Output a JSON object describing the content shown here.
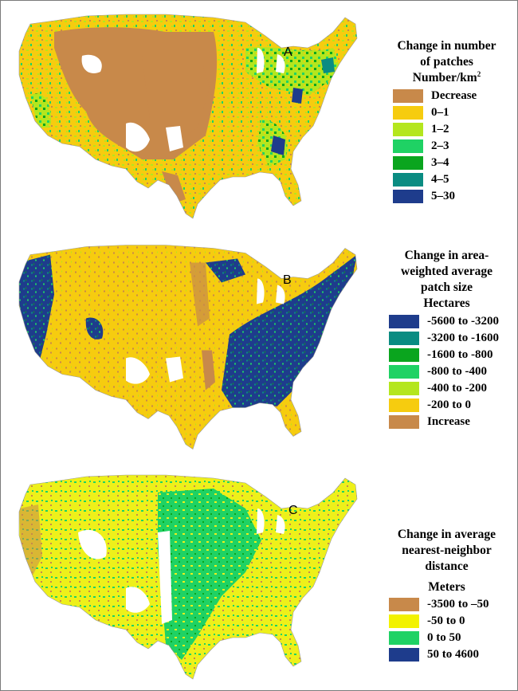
{
  "panels": [
    {
      "letter": "A",
      "title_lines": [
        "Change in number",
        "of patches"
      ],
      "unit": "Number/km",
      "unit_sup": "2",
      "dominant_color": "#c8894a",
      "classes": [
        {
          "label": "Decrease",
          "color": "#c8894a"
        },
        {
          "label": "0–1",
          "color": "#f6cc0f"
        },
        {
          "label": "1–2",
          "color": "#b4e61e"
        },
        {
          "label": "2–3",
          "color": "#1fd264"
        },
        {
          "label": "3–4",
          "color": "#0aa51e"
        },
        {
          "label": "4–5",
          "color": "#0a8c82"
        },
        {
          "label": "5–30",
          "color": "#1e3c8c"
        }
      ]
    },
    {
      "letter": "B",
      "title_lines": [
        "Change in area-",
        "weighted average",
        "patch size"
      ],
      "unit": "Hectares",
      "unit_sup": "",
      "dominant_color": "#f6cc0f",
      "classes": [
        {
          "label": "-5600 to -3200",
          "color": "#1e3c8c"
        },
        {
          "label": "-3200 to -1600",
          "color": "#0a8c82"
        },
        {
          "label": "-1600 to -800",
          "color": "#0aa51e"
        },
        {
          "label": "-800 to -400",
          "color": "#1fd264"
        },
        {
          "label": "-400 to -200",
          "color": "#b4e61e"
        },
        {
          "label": "-200 to 0",
          "color": "#f6cc0f"
        },
        {
          "label": "Increase",
          "color": "#c8894a"
        }
      ]
    },
    {
      "letter": "C",
      "title_lines": [
        "Change in average",
        "nearest-neighbor",
        "distance"
      ],
      "unit": "Meters",
      "unit_sup": "",
      "dominant_color": "#eef01a",
      "classes": [
        {
          "label": "-3500 to –50",
          "color": "#c8894a"
        },
        {
          "label": "-50 to 0",
          "color": "#f2f200"
        },
        {
          "label": "0 to 50",
          "color": "#1fd264"
        },
        {
          "label": "50 to 4600",
          "color": "#1e3c8c"
        }
      ]
    }
  ]
}
